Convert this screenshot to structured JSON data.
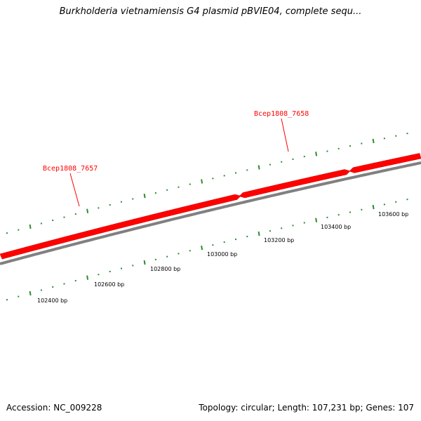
{
  "title": "Burkholderia vietnamiensis G4 plasmid pBVIE04, complete sequ...",
  "footer": {
    "accession": "Accession: NC_009228",
    "summary": "Topology: circular; Length: 107,231 bp; Genes: 107"
  },
  "colors": {
    "gene": "#ff0000",
    "backbone": "#808080",
    "ticks": "#2e8b2e",
    "gene_label": "#ff0000"
  },
  "genes": [
    {
      "name": "Bcep1808_7657"
    },
    {
      "name": "Bcep1808_7658"
    }
  ],
  "bp_ticks": [
    "102400 bp",
    "102600 bp",
    "102800 bp",
    "103000 bp",
    "103200 bp",
    "103400 bp",
    "103600 bp"
  ]
}
